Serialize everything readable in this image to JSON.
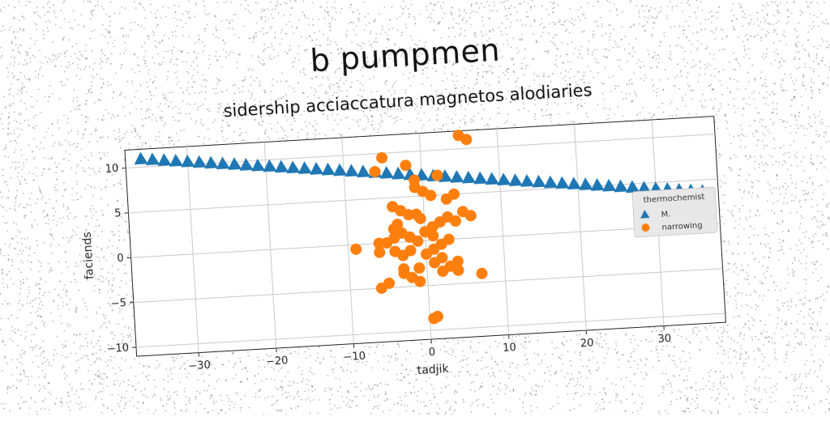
{
  "title": "b  pumpmen",
  "subtitle": "sidership acciaccatura magnetos alodiaries",
  "chart_data": {
    "type": "scatter",
    "xlabel": "tadjik",
    "ylabel": "faciends",
    "xlim": [
      -38,
      38
    ],
    "ylim": [
      -11,
      12
    ],
    "xticks": [
      -30,
      -20,
      -10,
      0,
      10,
      20,
      30
    ],
    "yticks": [
      -10,
      -5,
      0,
      5,
      10
    ],
    "xtick_labels": [
      "−30",
      "−20",
      "−10",
      "0",
      "10",
      "20",
      "30"
    ],
    "ytick_labels": [
      "−10",
      "−5",
      "0",
      "5",
      "10"
    ],
    "grid": true,
    "legend": {
      "title": "thermochemist",
      "placement": "right"
    },
    "series": [
      {
        "name": "M.",
        "marker": "triangle",
        "color": "#1f77b4",
        "x": [
          -36,
          -34.5,
          -33,
          -31.5,
          -30,
          -28.5,
          -27,
          -25.5,
          -24,
          -22.5,
          -21,
          -19.5,
          -18,
          -16.5,
          -15,
          -13.5,
          -12,
          -10.5,
          -9,
          -7.5,
          -6,
          -4.5,
          -3,
          -1.5,
          0,
          1.5,
          3,
          4.5,
          6,
          7.5,
          9,
          10.5,
          12,
          13.5,
          15,
          16.5,
          18,
          19.5,
          21,
          22.5,
          24,
          25.5,
          27,
          28.5,
          30,
          31.5,
          33,
          34.5,
          36
        ],
        "y": [
          10.9,
          10.75,
          10.6,
          10.45,
          10.3,
          10.15,
          10.0,
          9.85,
          9.7,
          9.55,
          9.4,
          9.25,
          9.1,
          8.95,
          8.8,
          8.65,
          8.5,
          8.35,
          8.2,
          8.05,
          7.9,
          7.75,
          7.6,
          7.45,
          7.3,
          7.15,
          7.0,
          6.85,
          6.7,
          6.55,
          6.4,
          6.25,
          6.1,
          5.95,
          5.8,
          5.65,
          5.5,
          5.35,
          5.2,
          5.05,
          4.9,
          4.75,
          4.6,
          4.45,
          4.3,
          4.15,
          4.0,
          3.85,
          3.7
        ]
      },
      {
        "name": "narrowing",
        "marker": "circle",
        "color": "#ff7f0e",
        "x": [
          5,
          6,
          -5,
          -6,
          -2,
          2,
          -1,
          -1,
          0,
          1,
          3,
          4,
          -4,
          -3,
          -2,
          -1,
          -0.5,
          -3.5,
          -4,
          -3,
          -2,
          0,
          1,
          2,
          3,
          4,
          5,
          6,
          -4,
          -5,
          -2,
          -1,
          0,
          1,
          2,
          3,
          -6,
          -4,
          -3,
          -2,
          0,
          1,
          2,
          4,
          -9,
          -6,
          -3,
          -1,
          1,
          3,
          -5,
          -3,
          -2,
          -1,
          2,
          4,
          7,
          -6,
          1,
          0.5
        ],
        "y": [
          11.5,
          11,
          9.5,
          8,
          8.5,
          7.2,
          6.8,
          6,
          5.5,
          5,
          4.5,
          5,
          4,
          3.5,
          3,
          3,
          2.5,
          2,
          1.5,
          1,
          0.5,
          1,
          1.5,
          2,
          2.5,
          2,
          3,
          2.5,
          0.5,
          0,
          0.5,
          0,
          1,
          0.5,
          -0.5,
          0,
          0,
          -1,
          -1.5,
          -1,
          -1.5,
          -1,
          -2,
          -2.5,
          -0.5,
          -1,
          -3,
          -3,
          -2.5,
          -3,
          -4.5,
          -3.5,
          -4,
          -4.5,
          -3.5,
          -3.5,
          -4,
          -5,
          -8.5,
          -8.7
        ]
      }
    ]
  }
}
